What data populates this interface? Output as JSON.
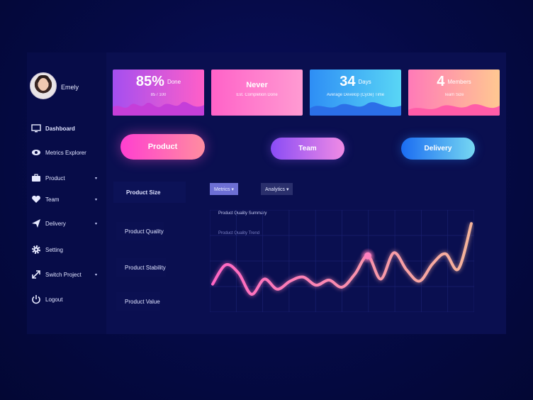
{
  "user": {
    "name": "Emely"
  },
  "sidebar": {
    "items": [
      {
        "label": "Dashboard",
        "icon": "monitor-icon",
        "has_chevron": false
      },
      {
        "label": "Metrics Explorer",
        "icon": "eye-icon",
        "has_chevron": false
      },
      {
        "label": "Product",
        "icon": "briefcase-icon",
        "has_chevron": true
      },
      {
        "label": "Team",
        "icon": "heart-icon",
        "has_chevron": true
      },
      {
        "label": "Delivery",
        "icon": "airplane-icon",
        "has_chevron": true
      },
      {
        "label": "Setting",
        "icon": "gear-icon",
        "has_chevron": false
      },
      {
        "label": "Switch Project",
        "icon": "expand-arrows-icon",
        "has_chevron": true
      },
      {
        "label": "Logout",
        "icon": "power-icon",
        "has_chevron": false
      }
    ],
    "chevron": "▾"
  },
  "cards": [
    {
      "num": "85%",
      "unit": "Done",
      "sub": "85 / 100",
      "grad": [
        "#a44ff0",
        "#ff5fc8"
      ],
      "wave": "#c53ed9"
    },
    {
      "num": "Never",
      "unit": "",
      "sub": "Est. Completion Done",
      "grad": [
        "#ff62c8",
        "#ff9bd2"
      ],
      "wave": "#ff5fbf"
    },
    {
      "num": "34",
      "unit": "Days",
      "sub": "Average Develop (Cycle) Time",
      "grad": [
        "#2e8ef5",
        "#59d6f5"
      ],
      "wave": "#2b6fe8"
    },
    {
      "num": "4",
      "unit": "Members",
      "sub": "Team Size",
      "grad": [
        "#ff7ab8",
        "#ffc891"
      ],
      "wave": "#ff5ca8"
    }
  ],
  "pills": {
    "product": "Product",
    "team": "Team",
    "delivery": "Delivery"
  },
  "menu": {
    "header": "Product Size",
    "items": [
      "Product Quality",
      "Product Stability",
      "Product Value"
    ]
  },
  "dropdowns": {
    "metrics": "Metrics ▾",
    "analytics": "Analytics ▾"
  },
  "chart_data": {
    "type": "line",
    "title": "Product Quality Summary",
    "subtitle": "Product Quality Trend",
    "grid": true,
    "x": [
      0,
      1,
      2,
      3,
      4,
      5,
      6,
      7,
      8,
      9,
      10,
      11,
      12,
      13,
      14,
      15,
      16,
      17,
      18,
      19,
      20
    ],
    "series": [
      {
        "values": [
          30,
          68,
          52,
          10,
          40,
          20,
          36,
          44,
          28,
          38,
          24,
          50,
          86,
          40,
          92,
          58,
          36,
          70,
          90,
          60,
          150
        ]
      }
    ],
    "ylim": [
      0,
      160
    ],
    "highlight_index": 12,
    "line_colors": [
      "#ff66c4",
      "#f5b49a"
    ]
  }
}
